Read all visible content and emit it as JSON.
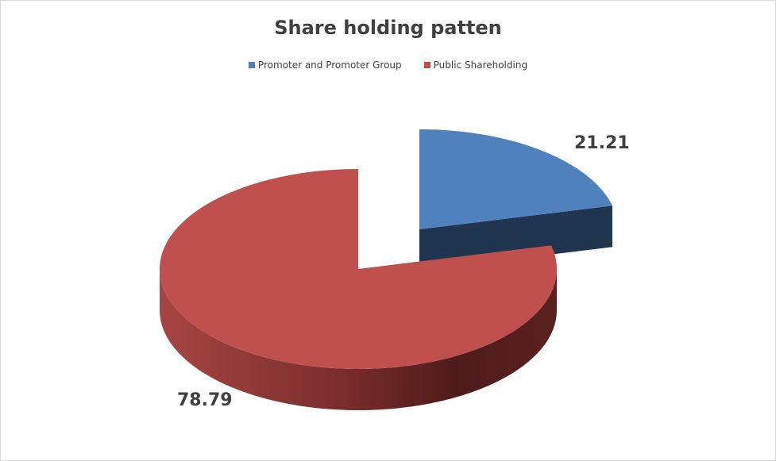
{
  "chart_data": {
    "type": "pie",
    "style": "3d-exploded",
    "title": "Share holding patten",
    "legend_position": "top",
    "categories": [
      "Promoter and Promoter Group",
      "Public Shareholding"
    ],
    "values": [
      21.21,
      78.79
    ],
    "data_labels": [
      "21.21",
      "78.79"
    ],
    "colors": [
      "#4f81bd",
      "#c0504d"
    ],
    "exploded": [
      true,
      false
    ]
  }
}
